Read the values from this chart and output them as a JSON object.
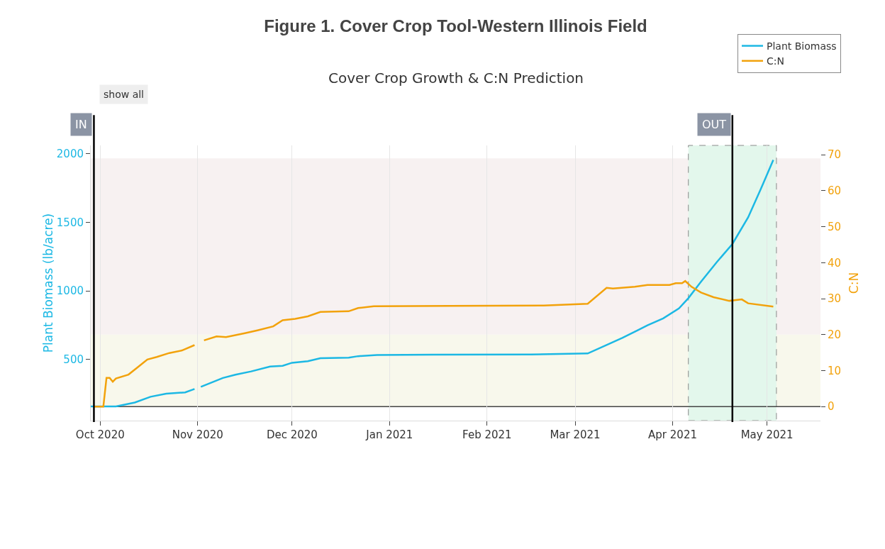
{
  "chart_data": {
    "type": "line",
    "title": "Figure 1. Cover Crop Tool-Western Illinois Field",
    "subtitle": "Cover Crop Growth & C:N Prediction",
    "ylabel": "Plant Biomass (lb/acre)",
    "y2label": "C:N",
    "annotations": [
      "show all"
    ],
    "xlim": [
      "2020-09-28",
      "2021-05-18"
    ],
    "xticks": [
      {
        "value": "2020-10-01",
        "label": "Oct 2020"
      },
      {
        "value": "2020-11-01",
        "label": "Nov 2020"
      },
      {
        "value": "2020-12-01",
        "label": "Dec 2020"
      },
      {
        "value": "2021-01-01",
        "label": "Jan 2021"
      },
      {
        "value": "2021-02-01",
        "label": "Feb 2021"
      },
      {
        "value": "2021-03-01",
        "label": "Mar 2021"
      },
      {
        "value": "2021-04-01",
        "label": "Apr 2021"
      },
      {
        "value": "2021-05-01",
        "label": "May 2021"
      }
    ],
    "ylim": [
      54,
      2061
    ],
    "yticks": [
      500,
      1000,
      1500,
      2000
    ],
    "y2lim": [
      -3.9,
      72.6
    ],
    "y2ticks": [
      0,
      10,
      20,
      30,
      40,
      50,
      60,
      70
    ],
    "series": [
      {
        "name": "Plant Biomass",
        "color": "#1cb8e4",
        "x": [
          "2020-09-28",
          "2020-10-06",
          "2020-10-12",
          "2020-10-17",
          "2020-10-22",
          "2020-10-28",
          "2020-10-31",
          "2020-11-01",
          "2020-11-02",
          "2020-11-09",
          "2020-11-13",
          "2020-11-18",
          "2020-11-24",
          "2020-11-28",
          "2020-12-01",
          "2020-12-06",
          "2020-12-10",
          "2020-12-19",
          "2020-12-22",
          "2020-12-28",
          "2021-01-15",
          "2021-02-15",
          "2021-03-05",
          "2021-03-11",
          "2021-03-16",
          "2021-03-21",
          "2021-03-24",
          "2021-03-29",
          "2021-04-03",
          "2021-04-06",
          "2021-04-10",
          "2021-04-15",
          "2021-04-20",
          "2021-04-25",
          "2021-04-29",
          "2021-05-03"
        ],
        "values": [
          158,
          158,
          186,
          228,
          251,
          260,
          285,
          null,
          300,
          365,
          389,
          413,
          448,
          454,
          476,
          487,
          509,
          513,
          524,
          532,
          535,
          536,
          544,
          606,
          657,
          714,
          749,
          800,
          872,
          947,
          1066,
          1209,
          1342,
          1536,
          1741,
          1955
        ]
      },
      {
        "name": "C:N",
        "color": "#f2a20c",
        "axis": "y2",
        "x": [
          "2020-09-29",
          "2020-10-02",
          "2020-10-03",
          "2020-10-04",
          "2020-10-05",
          "2020-10-06",
          "2020-10-10",
          "2020-10-13",
          "2020-10-16",
          "2020-10-19",
          "2020-10-23",
          "2020-10-27",
          "2020-10-31",
          "2020-11-01",
          "2020-11-03",
          "2020-11-07",
          "2020-11-10",
          "2020-11-16",
          "2020-11-20",
          "2020-11-25",
          "2020-11-28",
          "2020-12-02",
          "2020-12-06",
          "2020-12-10",
          "2020-12-19",
          "2020-12-22",
          "2020-12-27",
          "2021-01-20",
          "2021-02-19",
          "2021-03-05",
          "2021-03-11",
          "2021-03-13",
          "2021-03-20",
          "2021-03-24",
          "2021-03-31",
          "2021-04-02",
          "2021-04-04",
          "2021-04-05",
          "2021-04-07",
          "2021-04-10",
          "2021-04-14",
          "2021-04-19",
          "2021-04-23",
          "2021-04-25",
          "2021-05-03"
        ],
        "values": [
          0,
          0,
          8,
          8,
          6.9,
          7.8,
          8.9,
          11,
          13.1,
          13.8,
          14.9,
          15.6,
          17.1,
          null,
          18.4,
          19.5,
          19.3,
          20.4,
          21.2,
          22.3,
          24,
          24.4,
          25.1,
          26.3,
          26.5,
          27.4,
          27.9,
          28,
          28.1,
          28.6,
          33,
          32.8,
          33.3,
          33.8,
          33.8,
          34.3,
          34.3,
          34.9,
          33.3,
          31.7,
          30.4,
          29.4,
          29.8,
          28.7,
          27.8
        ]
      }
    ],
    "ref_lines": [
      {
        "axis": "x",
        "value": "2020-09-29",
        "label": "IN",
        "color": "#000000"
      },
      {
        "axis": "x",
        "value": "2021-04-20",
        "label": "OUT",
        "color": "#000000"
      },
      {
        "axis": "y2",
        "value": 0,
        "color": "#444444"
      }
    ],
    "bands": [
      {
        "axis": "y2",
        "from": 20,
        "to": 69,
        "color": "#f7f1f1"
      },
      {
        "axis": "y2",
        "from": 0,
        "to": 20,
        "color": "#f8f8ec"
      },
      {
        "axis": "x",
        "from": "2021-04-06",
        "to": "2021-05-04",
        "color": "#e3f7ec"
      }
    ],
    "grid": "x",
    "legend": "top right"
  }
}
